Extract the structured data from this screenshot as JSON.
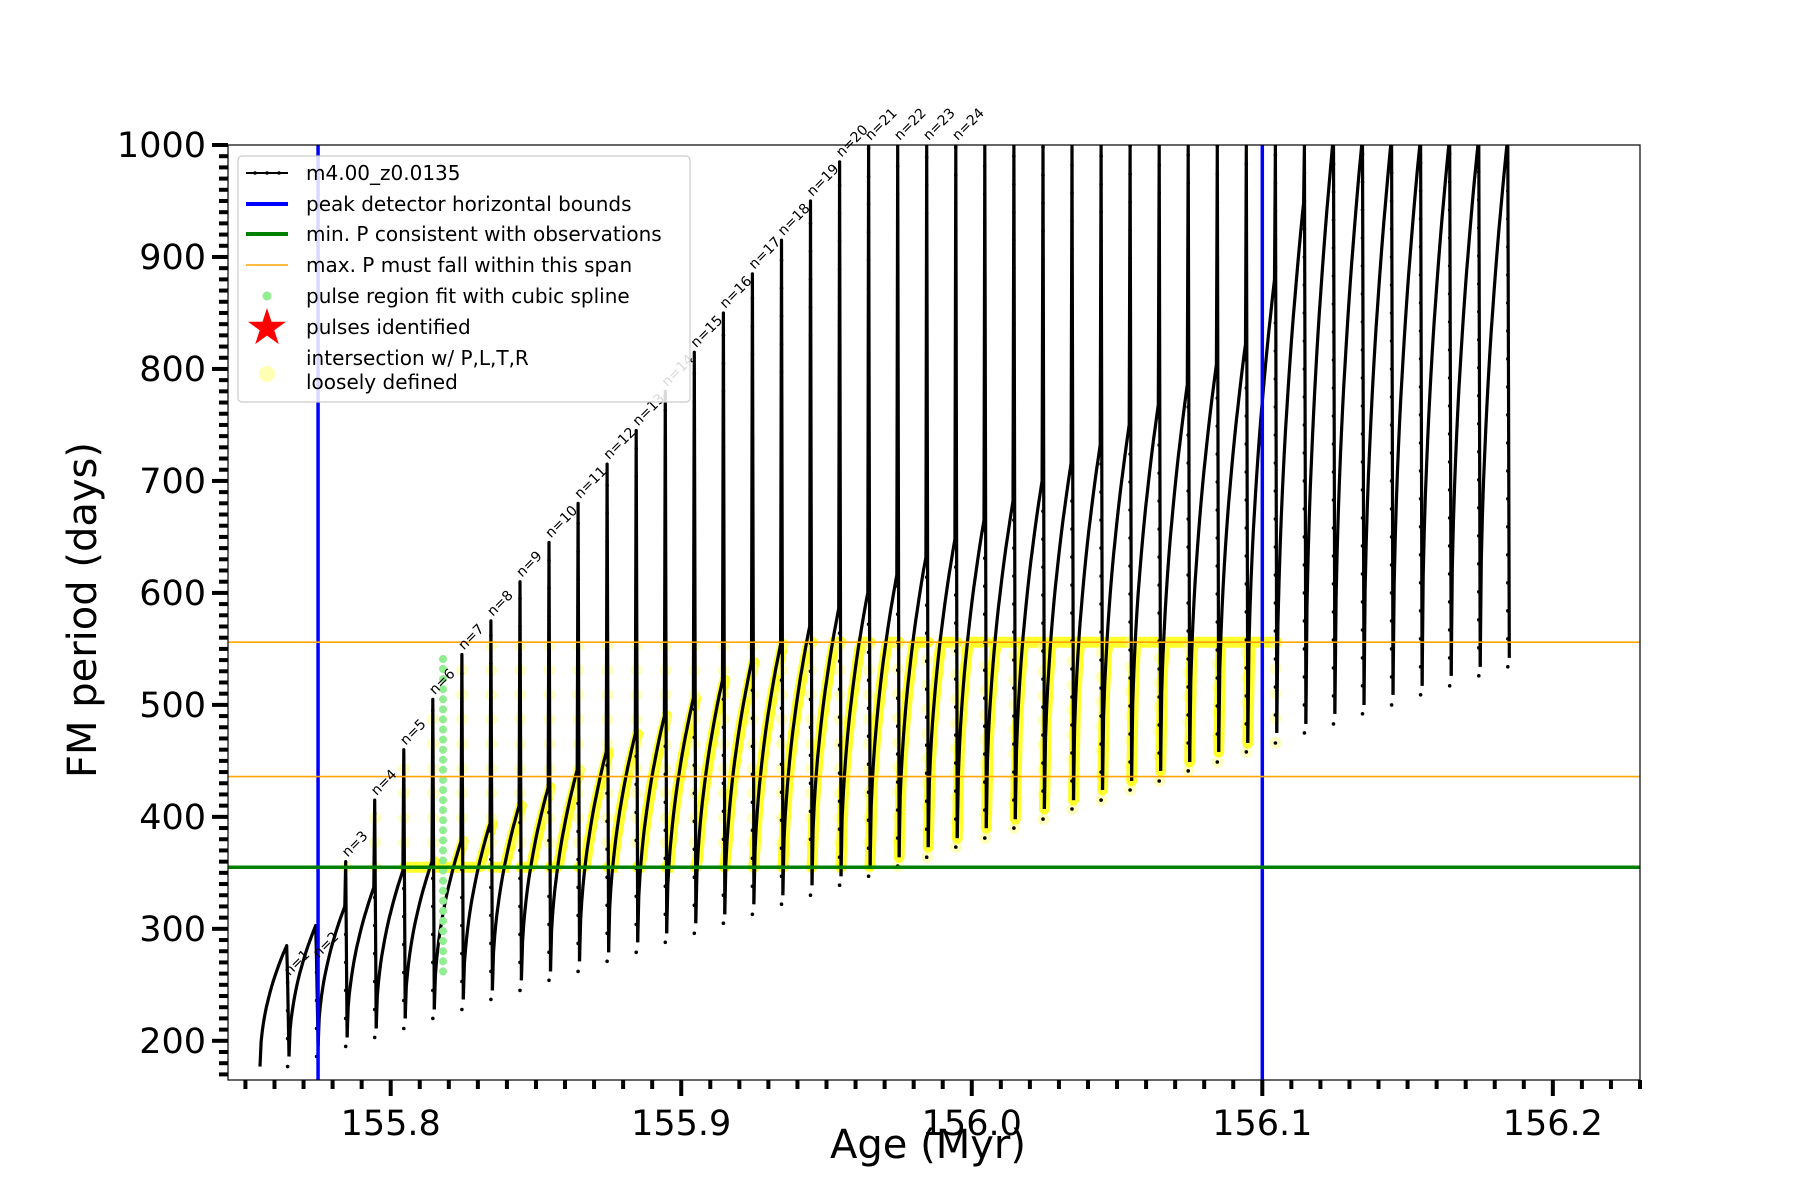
{
  "chart_data": {
    "type": "line",
    "xlabel": "Age (Myr)",
    "ylabel": "FM period (days)",
    "xlim": [
      155.744,
      156.23
    ],
    "ylim": [
      165,
      1000
    ],
    "xticks": [
      155.8,
      155.9,
      156.0,
      156.1,
      156.2
    ],
    "xtick_labels": [
      "155.8",
      "155.9",
      "156.0",
      "156.1",
      "156.2"
    ],
    "yticks": [
      200,
      300,
      400,
      500,
      600,
      700,
      800,
      900,
      1000
    ],
    "ytick_labels": [
      "200",
      "300",
      "400",
      "500",
      "600",
      "700",
      "800",
      "900",
      "1000"
    ],
    "grid": false,
    "legend_position": "top-left",
    "legend": [
      {
        "label": "m4.00_z0.0135",
        "style": "line-with-dots",
        "color": "#000000"
      },
      {
        "label": "peak detector horizontal bounds",
        "style": "line",
        "color": "#0000ff"
      },
      {
        "label": "min. P consistent with observations",
        "style": "line",
        "color": "#008000"
      },
      {
        "label": "max. P must fall within this span",
        "style": "thin-line",
        "color": "#ffa500"
      },
      {
        "label": "pulse region fit with cubic spline",
        "style": "dot",
        "color": "#90ee90"
      },
      {
        "label": "pulses identified",
        "style": "star",
        "color": "#ff0000"
      },
      {
        "label": "intersection w/ P,L,T,R",
        "label2": "loosely defined",
        "style": "circle",
        "color": "#ffff9a"
      }
    ],
    "vertical_lines": [
      155.775,
      156.1
    ],
    "min_period_line": 355,
    "max_period_span": [
      436,
      556
    ],
    "series": [
      {
        "name": "m4.00_z0.0135",
        "pulse_ages": [
          155.755,
          155.765,
          155.775,
          155.785,
          155.795,
          155.805,
          155.815,
          155.825,
          155.835,
          155.845,
          155.855,
          155.865,
          155.875,
          155.885,
          155.895,
          155.905,
          155.915,
          155.925,
          155.935,
          155.945,
          155.955,
          155.965,
          155.975,
          155.985,
          155.995,
          156.005,
          156.015,
          156.025,
          156.035,
          156.045,
          156.055,
          156.065,
          156.075,
          156.085,
          156.095,
          156.105,
          156.115,
          156.125,
          156.135,
          156.145,
          156.155,
          156.165,
          156.175
        ],
        "pulse_base_periods": [
          177,
          186,
          195,
          203,
          211,
          220,
          228,
          237,
          245,
          254,
          262,
          271,
          279,
          288,
          296,
          305,
          313,
          322,
          330,
          339,
          347,
          356,
          364,
          373,
          381,
          390,
          398,
          407,
          415,
          424,
          432,
          441,
          449,
          458,
          466,
          475,
          483,
          492,
          500,
          509,
          517,
          526,
          534
        ],
        "hump_top_periods": [
          285,
          303,
          320,
          337,
          352,
          360,
          378,
          394,
          410,
          426,
          442,
          458,
          474,
          490,
          506,
          522,
          538,
          554,
          570,
          586,
          600,
          616,
          632,
          648,
          665,
          682,
          700,
          716,
          732,
          750,
          768,
          786,
          804,
          822,
          880,
          948,
          1000,
          1000,
          1000,
          1000,
          1000,
          1000,
          1000
        ],
        "spike_top_periods": [
          254,
          270,
          360,
          415,
          460,
          505,
          545,
          575,
          610,
          645,
          680,
          715,
          745,
          780,
          815,
          850,
          885,
          915,
          950,
          985,
          1000,
          1000,
          1000,
          1000,
          1000,
          1000,
          1000,
          1000,
          1000,
          1000,
          1000,
          1000,
          1000,
          1000,
          1000,
          1000,
          1000,
          1000,
          1000,
          1000,
          1000,
          1000,
          1000
        ]
      }
    ],
    "annotations": [
      "n=1",
      "n=2",
      "n=3",
      "n=4",
      "n=5",
      "n=6",
      "n=7",
      "n=8",
      "n=9",
      "n=10",
      "n=11",
      "n=12",
      "n=13",
      "n=14",
      "n=15",
      "n=16",
      "n=17",
      "n=18",
      "n=19",
      "n=20",
      "n=21",
      "n=22",
      "n=23",
      "n=24"
    ],
    "cubic_spline_region": {
      "age": 155.818,
      "period_min": 262,
      "period_max": 545
    }
  }
}
